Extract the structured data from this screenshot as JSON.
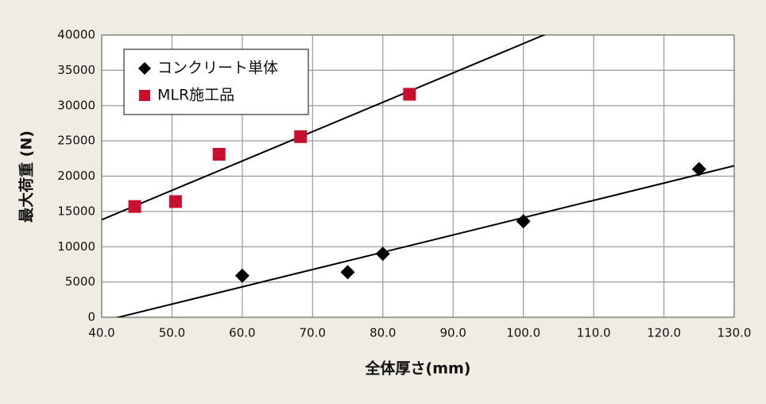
{
  "chart_data": {
    "type": "scatter",
    "x_label": "全体厚さ(mm)",
    "y_label": "最大荷重 (N)",
    "xlim": [
      40,
      130
    ],
    "xticks": [
      {
        "value": 40,
        "label": "40.0"
      },
      {
        "value": 50,
        "label": "50.0"
      },
      {
        "value": 60,
        "label": "60.0"
      },
      {
        "value": 70,
        "label": "70.0"
      },
      {
        "value": 80,
        "label": "80.0"
      },
      {
        "value": 90,
        "label": "90.0"
      },
      {
        "value": 100,
        "label": "100.0"
      },
      {
        "value": 110,
        "label": "110.0"
      },
      {
        "value": 120,
        "label": "120.0"
      },
      {
        "value": 130,
        "label": "130.0"
      }
    ],
    "ylim": [
      0,
      40000
    ],
    "yticks": [
      0,
      5000,
      10000,
      15000,
      20000,
      25000,
      30000,
      35000,
      40000
    ],
    "grid": true,
    "legend": "upper left",
    "trendline": "linear",
    "series": [
      {
        "name": "コンクリート単体",
        "color": "#000000",
        "marker": "diamond",
        "x": [
          60,
          75,
          80,
          100,
          125
        ],
        "values": [
          5900,
          6400,
          9000,
          13600,
          21000
        ]
      },
      {
        "name": "MLR施工品",
        "color": "#c8102e",
        "marker": "square",
        "x": [
          44.7,
          50.5,
          56.7,
          68.3,
          83.8
        ],
        "values": [
          15700,
          16400,
          23100,
          25600,
          31600
        ]
      }
    ]
  }
}
